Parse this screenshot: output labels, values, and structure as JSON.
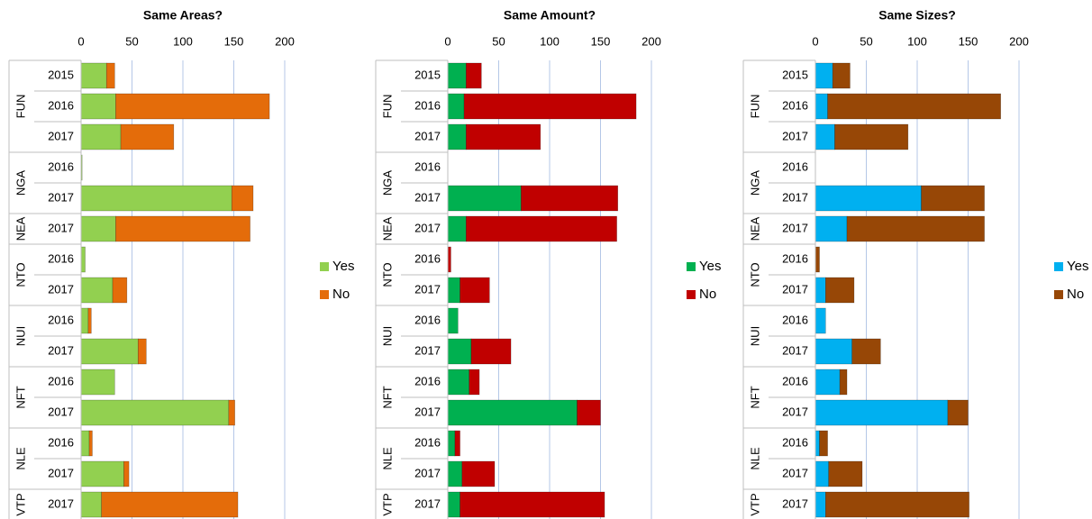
{
  "chart_data": [
    {
      "type": "stacked_barh",
      "title": "Same Areas?",
      "groups": [
        {
          "label": "FUN",
          "years": [
            "2015",
            "2016",
            "2017"
          ]
        },
        {
          "label": "NGA",
          "years": [
            "2016",
            "2017"
          ]
        },
        {
          "label": "NEA",
          "years": [
            "2017"
          ]
        },
        {
          "label": "NTO",
          "years": [
            "2016",
            "2017"
          ]
        },
        {
          "label": "NUI",
          "years": [
            "2016",
            "2017"
          ]
        },
        {
          "label": "NFT",
          "years": [
            "2016",
            "2017"
          ]
        },
        {
          "label": "NLE",
          "years": [
            "2016",
            "2017"
          ]
        },
        {
          "label": "VTP",
          "years": [
            "2017"
          ]
        }
      ],
      "series": [
        {
          "name": "Yes",
          "color": "#92d050",
          "values": [
            25,
            34,
            39,
            1,
            148,
            34,
            4,
            31,
            7,
            56,
            33,
            145,
            8,
            42,
            20
          ]
        },
        {
          "name": "No",
          "color": "#e46c0a",
          "values": [
            8,
            151,
            52,
            0,
            21,
            132,
            0,
            14,
            3,
            8,
            0,
            6,
            3,
            5,
            134
          ]
        }
      ],
      "xlim": [
        0,
        200
      ],
      "xticks": [
        0,
        50,
        100,
        150,
        200
      ],
      "grid": true
    },
    {
      "type": "stacked_barh",
      "title": "Same Amount?",
      "groups": [
        {
          "label": "FUN",
          "years": [
            "2015",
            "2016",
            "2017"
          ]
        },
        {
          "label": "NGA",
          "years": [
            "2016",
            "2017"
          ]
        },
        {
          "label": "NEA",
          "years": [
            "2017"
          ]
        },
        {
          "label": "NTO",
          "years": [
            "2016",
            "2017"
          ]
        },
        {
          "label": "NUI",
          "years": [
            "2016",
            "2017"
          ]
        },
        {
          "label": "NFT",
          "years": [
            "2016",
            "2017"
          ]
        },
        {
          "label": "NLE",
          "years": [
            "2016",
            "2017"
          ]
        },
        {
          "label": "VTP",
          "years": [
            "2017"
          ]
        }
      ],
      "series": [
        {
          "name": "Yes",
          "color": "#00b050",
          "values": [
            18,
            16,
            18,
            0,
            72,
            18,
            0,
            12,
            10,
            23,
            21,
            127,
            7,
            14,
            12
          ]
        },
        {
          "name": "No",
          "color": "#c00000",
          "values": [
            15,
            169,
            73,
            0,
            95,
            148,
            3,
            29,
            0,
            39,
            10,
            23,
            5,
            32,
            142
          ]
        }
      ],
      "xlim": [
        0,
        200
      ],
      "xticks": [
        0,
        50,
        100,
        150,
        200
      ],
      "grid": true
    },
    {
      "type": "stacked_barh",
      "title": "Same Sizes?",
      "groups": [
        {
          "label": "FUN",
          "years": [
            "2015",
            "2016",
            "2017"
          ]
        },
        {
          "label": "NGA",
          "years": [
            "2016",
            "2017"
          ]
        },
        {
          "label": "NEA",
          "years": [
            "2017"
          ]
        },
        {
          "label": "NTO",
          "years": [
            "2016",
            "2017"
          ]
        },
        {
          "label": "NUI",
          "years": [
            "2016",
            "2017"
          ]
        },
        {
          "label": "NFT",
          "years": [
            "2016",
            "2017"
          ]
        },
        {
          "label": "NLE",
          "years": [
            "2016",
            "2017"
          ]
        },
        {
          "label": "VTP",
          "years": [
            "2017"
          ]
        }
      ],
      "series": [
        {
          "name": "Yes",
          "color": "#00b0f0",
          "values": [
            17,
            12,
            19,
            0,
            104,
            31,
            0,
            10,
            10,
            36,
            24,
            130,
            4,
            13,
            10
          ]
        },
        {
          "name": "No",
          "color": "#974706",
          "values": [
            17,
            170,
            72,
            0,
            62,
            135,
            4,
            28,
            0,
            28,
            7,
            20,
            8,
            33,
            141
          ]
        }
      ],
      "xlim": [
        0,
        200
      ],
      "xticks": [
        0,
        50,
        100,
        150,
        200
      ],
      "grid": true
    }
  ]
}
